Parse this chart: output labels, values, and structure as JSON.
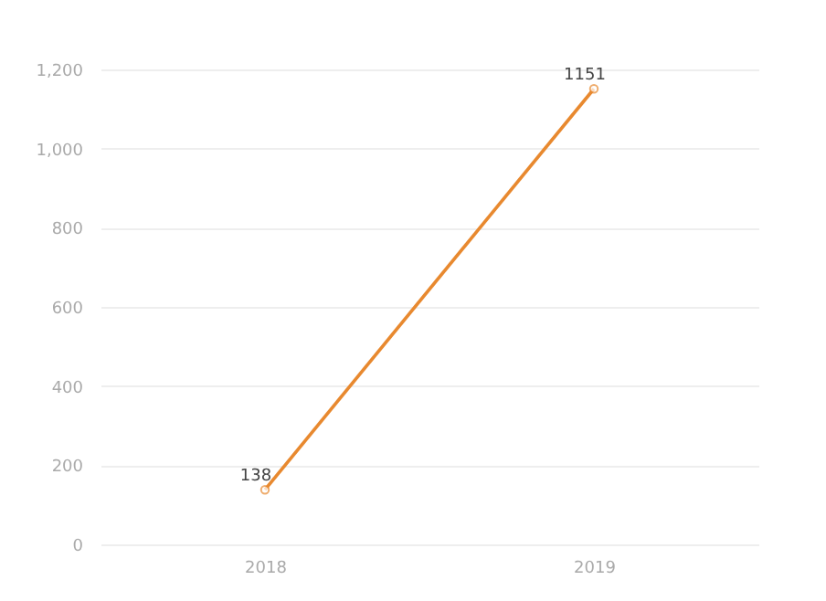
{
  "chart_data": {
    "type": "line",
    "categories": [
      "2018",
      "2019"
    ],
    "series": [
      {
        "color": "#e8892f",
        "values": [
          138,
          1151
        ]
      }
    ],
    "ylim": [
      0,
      1200
    ],
    "yticks": [
      0,
      200,
      400,
      600,
      800,
      {
        "value": 1000,
        "label": "1,000"
      },
      {
        "value": 1200,
        "label": "1,200"
      }
    ],
    "grid": "y",
    "marker": "circle",
    "data_labels": true,
    "line_style": "solid"
  }
}
